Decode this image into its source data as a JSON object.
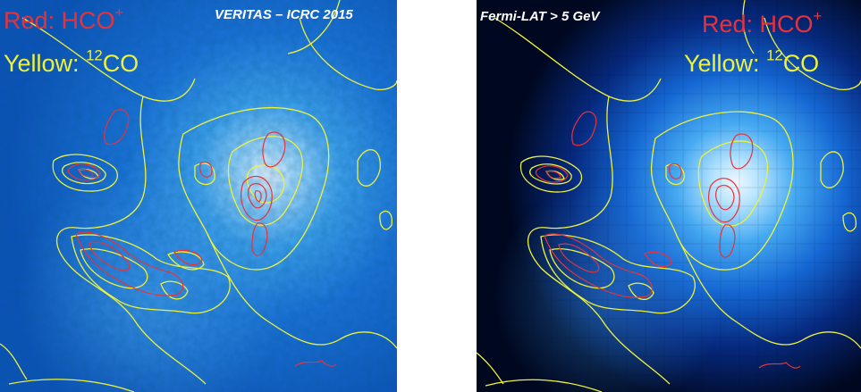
{
  "left_panel": {
    "badge": "VERITAS – ICRC 2015",
    "legend_red_prefix": "Red: HCO",
    "legend_red_sup": "+",
    "legend_yellow_prefix": "Yellow: ",
    "legend_yellow_sup": "12",
    "legend_yellow_suffix": "CO"
  },
  "right_panel": {
    "badge": "Fermi-LAT > 5 GeV",
    "legend_red_prefix": "Red: HCO",
    "legend_red_sup": "+",
    "legend_yellow_prefix": "Yellow: ",
    "legend_yellow_sup": "12",
    "legend_yellow_suffix": "CO"
  },
  "colors": {
    "hco_contour": "#e8323a",
    "co_contour": "#eef23a",
    "map_dark": "#000a3a",
    "map_mid": "#0a5ac8",
    "map_peak": "#eaf6ff"
  }
}
